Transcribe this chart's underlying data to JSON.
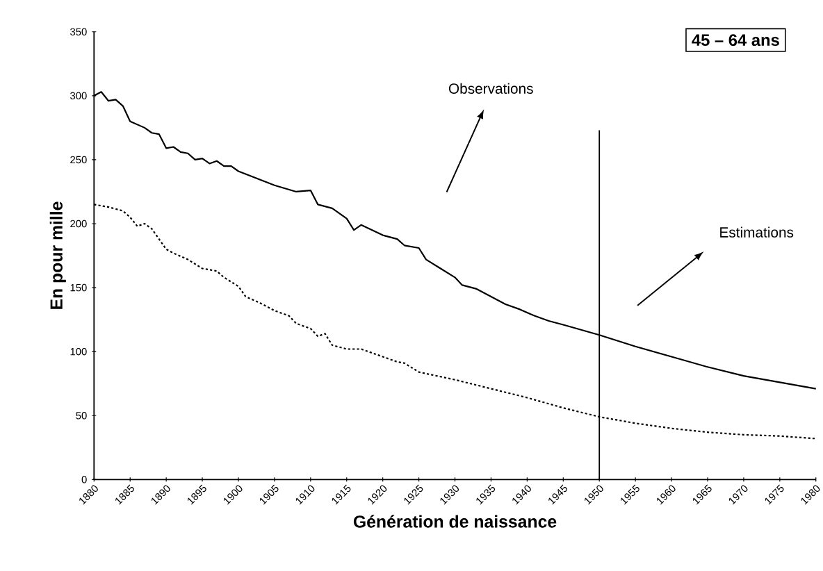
{
  "chart_data": {
    "type": "line",
    "xlabel": "Génération de naissance",
    "ylabel": "En pour mille",
    "annotations": [
      "45 – 64 ans",
      "Observations",
      "Estimations"
    ],
    "series": [
      {
        "color": "#000000",
        "line_style": "solid",
        "x": [
          1880,
          1881,
          1882,
          1883,
          1884,
          1885,
          1887,
          1888,
          1889,
          1890,
          1891,
          1892,
          1893,
          1894,
          1895,
          1896,
          1897,
          1898,
          1899,
          1900,
          1905,
          1908,
          1910,
          1911,
          1913,
          1915,
          1916,
          1917,
          1920,
          1922,
          1923,
          1925,
          1926,
          1928,
          1930,
          1931,
          1933,
          1935,
          1937,
          1939,
          1941,
          1943,
          1945,
          1950,
          1955,
          1960,
          1965,
          1970,
          1975,
          1980
        ],
        "values": [
          300,
          303,
          296,
          297,
          292,
          280,
          275,
          271,
          270,
          259,
          260,
          256,
          255,
          250,
          251,
          247,
          249,
          245,
          245,
          241,
          230,
          225,
          226,
          215,
          212,
          204,
          195,
          199,
          191,
          188,
          183,
          181,
          172,
          165,
          158,
          152,
          149,
          143,
          137,
          133,
          128,
          124,
          121,
          113,
          104,
          96,
          88,
          81,
          76,
          71
        ]
      },
      {
        "color": "#000000",
        "line_style": "dotted",
        "x": [
          1880,
          1882,
          1884,
          1885,
          1886,
          1887,
          1888,
          1890,
          1891,
          1893,
          1895,
          1897,
          1898,
          1900,
          1901,
          1903,
          1905,
          1907,
          1908,
          1910,
          1911,
          1912,
          1913,
          1915,
          1917,
          1920,
          1922,
          1923,
          1925,
          1930,
          1935,
          1940,
          1945,
          1950,
          1955,
          1960,
          1965,
          1970,
          1975,
          1980
        ],
        "values": [
          215,
          213,
          210,
          205,
          198,
          200,
          196,
          180,
          177,
          172,
          165,
          163,
          158,
          151,
          143,
          138,
          132,
          128,
          122,
          118,
          112,
          114,
          105,
          102,
          102,
          96,
          92,
          91,
          84,
          78,
          71,
          64,
          56,
          49,
          44,
          40,
          37,
          35,
          34,
          32
        ]
      }
    ],
    "ref_lines": [
      {
        "axis": "x",
        "value": 1950,
        "color": "#000000"
      }
    ],
    "xlim": [
      1880,
      1980
    ],
    "ylim": [
      0,
      350
    ],
    "xticks": [
      1880,
      1885,
      1890,
      1895,
      1900,
      1905,
      1910,
      1915,
      1920,
      1925,
      1930,
      1935,
      1940,
      1945,
      1950,
      1955,
      1960,
      1965,
      1970,
      1975,
      1980
    ],
    "yticks": [
      0,
      50,
      100,
      150,
      200,
      250,
      300,
      350
    ],
    "grid": false,
    "marker": "none"
  }
}
